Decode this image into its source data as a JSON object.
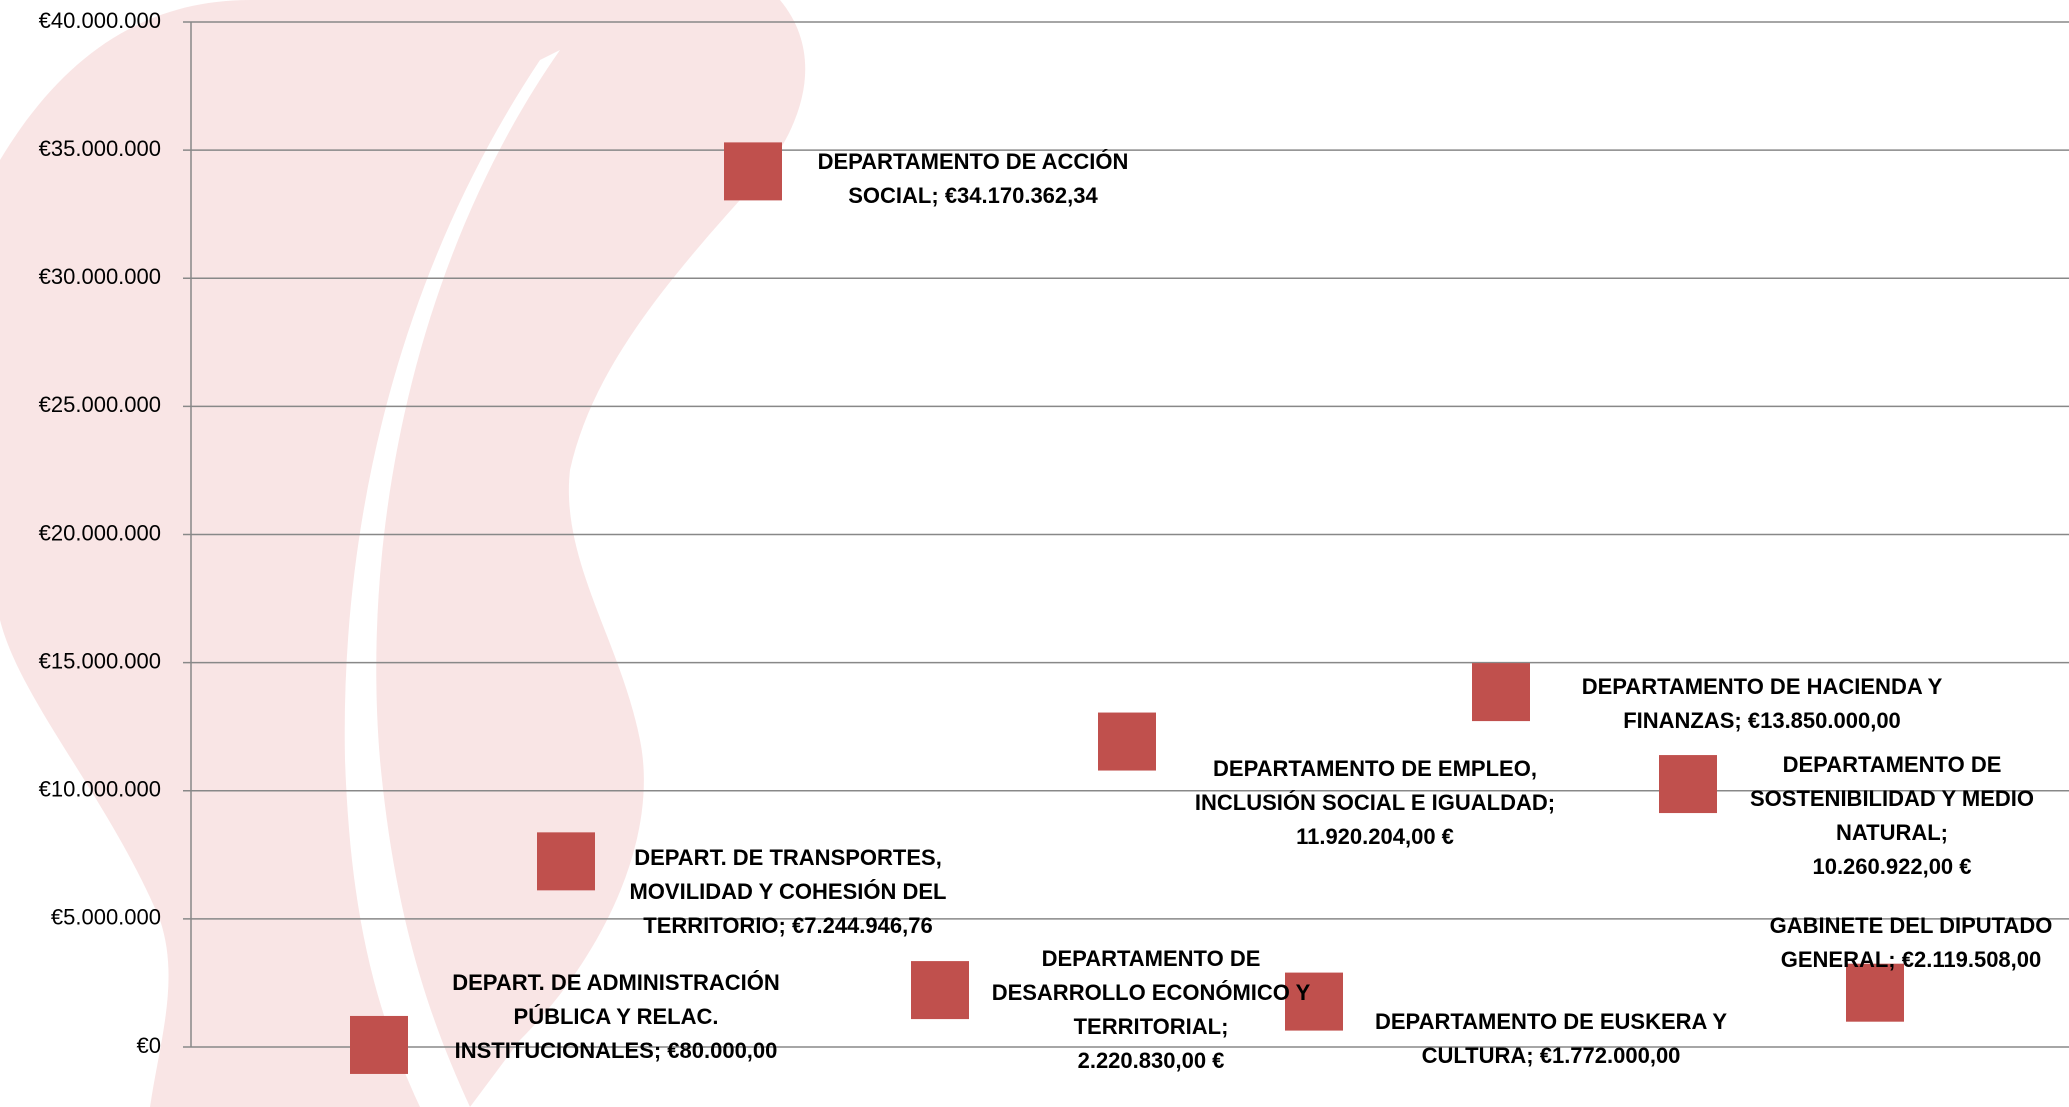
{
  "chart_data": {
    "type": "scatter",
    "categories": [
      "DEPART. DE ADMINISTRACIÓN PÚBLICA Y RELAC. INSTITUCIONALES;",
      "DEPART. DE TRANSPORTES, MOVILIDAD Y COHESIÓN DEL TERRITORIO;",
      "DEPARTAMENTO DE ACCIÓN SOCIAL;",
      "DEPARTAMENTO DE DESARROLLO ECONÓMICO Y TERRITORIAL;",
      "DEPARTAMENTO DE EMPLEO, INCLUSIÓN SOCIAL E IGUALDAD;",
      "DEPARTAMENTO DE EUSKERA Y CULTURA;",
      "DEPARTAMENTO DE HACIENDA Y FINANZAS;",
      "DEPARTAMENTO DE SOSTENIBILIDAD Y MEDIO NATURAL;",
      "GABINETE DEL DIPUTADO GENERAL;"
    ],
    "values": [
      80000,
      7244946.76,
      34170362.34,
      2220830,
      11920204,
      1772000,
      13850000,
      10260922,
      2119508
    ],
    "value_labels": [
      "€80.000,00",
      "€7.244.946,76",
      "€34.170.362,34",
      "2.220.830,00 €",
      "11.920.204,00 €",
      "€1.772.000,00",
      "€13.850.000,00",
      "10.260.922,00 €",
      "€2.119.508,00"
    ],
    "color": "#c0504d",
    "ylim": [
      0,
      40000000
    ],
    "yticks": [
      {
        "value": 0,
        "label": "€0"
      },
      {
        "value": 5000000,
        "label": "€5.000.000"
      },
      {
        "value": 10000000,
        "label": "€10.000.000"
      },
      {
        "value": 15000000,
        "label": "€15.000.000"
      },
      {
        "value": 20000000,
        "label": "€20.000.000"
      },
      {
        "value": 25000000,
        "label": "€25.000.000"
      },
      {
        "value": 30000000,
        "label": "€30.000.000"
      },
      {
        "value": 35000000,
        "label": "€35.000.000"
      },
      {
        "value": 40000000,
        "label": "€40.000.000"
      }
    ],
    "grid": true
  }
}
